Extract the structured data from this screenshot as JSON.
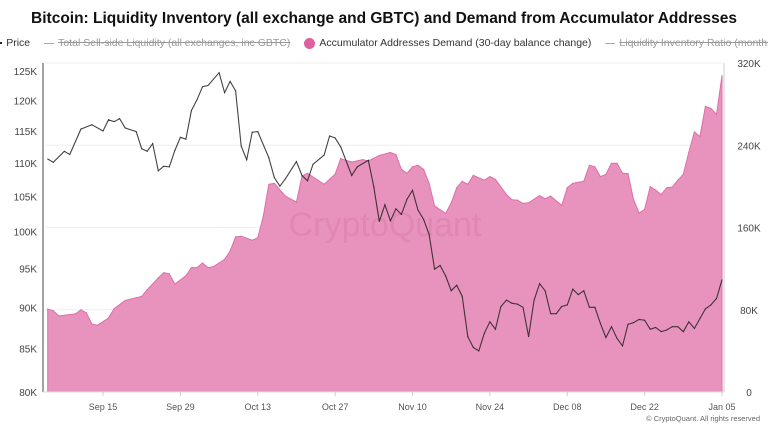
{
  "chart_data": {
    "type": "line+area",
    "title": "Bitcoin: Liquidity Inventory (all exchange and GBTC) and Demand from Accumulator Addresses",
    "legend": [
      {
        "label": "Price",
        "visible": true,
        "color": "#222222",
        "marker": "line"
      },
      {
        "label": "Total Sell-side Liquidity (all exchanges, inc GBTC)",
        "visible": false,
        "color": "#aaaaaa",
        "marker": "line"
      },
      {
        "label": "Accumulator Addresses Demand (30-day balance change)",
        "visible": true,
        "color": "#e0609f",
        "marker": "dot"
      },
      {
        "label": "Liquidity Inventory Ratio (months)",
        "visible": false,
        "color": "#aaaaaa",
        "marker": "line"
      }
    ],
    "legend_placement": "top",
    "x_ticks": [
      "Sep 15",
      "Sep 29",
      "Oct 13",
      "Oct 27",
      "Nov 10",
      "Nov 24",
      "Dec 08",
      "Dec 22",
      "Jan 05"
    ],
    "left_axis": {
      "scale": "log",
      "range": [
        80000,
        125000
      ],
      "ticks": [
        "80K",
        "85K",
        "90K",
        "95K",
        "100K",
        "105K",
        "110K",
        "115K",
        "120K",
        "125K"
      ],
      "tick_values": [
        80,
        85,
        90,
        95,
        100,
        105,
        110,
        115,
        120,
        125
      ]
    },
    "right_axis": {
      "scale": "linear",
      "range": [
        0,
        320000
      ],
      "ticks": [
        "0",
        "80K",
        "160K",
        "240K",
        "320K"
      ],
      "tick_values": [
        0,
        80,
        160,
        240,
        320
      ]
    },
    "grid": "horizontal",
    "watermark": "CryptoQuant",
    "series": [
      {
        "name": "Price",
        "type": "line",
        "axis": "left",
        "unit": "K USD",
        "color": "#222222",
        "points": [
          [
            "Sep 5",
            110.6
          ],
          [
            "Sep 6",
            110.1
          ],
          [
            "Sep 8",
            111.8
          ],
          [
            "Sep 9",
            111.3
          ],
          [
            "Sep 11",
            115.3
          ],
          [
            "Sep 13",
            116.0
          ],
          [
            "Sep 15",
            115.0
          ],
          [
            "Sep 16",
            116.8
          ],
          [
            "Sep 17",
            116.5
          ],
          [
            "Sep 18",
            117.0
          ],
          [
            "Sep 19",
            115.5
          ],
          [
            "Sep 21",
            114.9
          ],
          [
            "Sep 22",
            112.2
          ],
          [
            "Sep 23",
            111.8
          ],
          [
            "Sep 24",
            113.0
          ],
          [
            "Sep 25",
            108.8
          ],
          [
            "Sep 26",
            109.5
          ],
          [
            "Sep 27",
            109.4
          ],
          [
            "Sep 28",
            111.9
          ],
          [
            "Sep 29",
            114.0
          ],
          [
            "Sep 30",
            113.7
          ],
          [
            "Oct 1",
            118.3
          ],
          [
            "Oct 2",
            120.1
          ],
          [
            "Oct 3",
            122.3
          ],
          [
            "Oct 4",
            122.5
          ],
          [
            "Oct 6",
            124.7
          ],
          [
            "Oct 7",
            121.3
          ],
          [
            "Oct 8",
            123.2
          ],
          [
            "Oct 9",
            121.6
          ],
          [
            "Oct 10",
            112.6
          ],
          [
            "Oct 11",
            110.5
          ],
          [
            "Oct 12",
            114.8
          ],
          [
            "Oct 13",
            114.9
          ],
          [
            "Oct 15",
            110.8
          ],
          [
            "Oct 16",
            107.8
          ],
          [
            "Oct 17",
            106.5
          ],
          [
            "Oct 18",
            107.6
          ],
          [
            "Oct 20",
            110.2
          ],
          [
            "Oct 21",
            108.1
          ],
          [
            "Oct 22",
            107.3
          ],
          [
            "Oct 23",
            109.8
          ],
          [
            "Oct 25",
            111.2
          ],
          [
            "Oct 26",
            114.2
          ],
          [
            "Oct 27",
            113.9
          ],
          [
            "Oct 28",
            112.5
          ],
          [
            "Oct 30",
            108.1
          ],
          [
            "Oct 31",
            109.4
          ],
          [
            "Nov 2",
            110.4
          ],
          [
            "Nov 3",
            106.4
          ],
          [
            "Nov 4",
            101.4
          ],
          [
            "Nov 5",
            103.8
          ],
          [
            "Nov 6",
            101.5
          ],
          [
            "Nov 7",
            103.2
          ],
          [
            "Nov 8",
            102.4
          ],
          [
            "Nov 9",
            104.6
          ],
          [
            "Nov 10",
            105.9
          ],
          [
            "Nov 11",
            103.0
          ],
          [
            "Nov 12",
            101.7
          ],
          [
            "Nov 13",
            99.6
          ],
          [
            "Nov 14",
            94.9
          ],
          [
            "Nov 15",
            95.4
          ],
          [
            "Nov 16",
            94.0
          ],
          [
            "Nov 17",
            92.1
          ],
          [
            "Nov 18",
            92.8
          ],
          [
            "Nov 19",
            91.4
          ],
          [
            "Nov 20",
            86.4
          ],
          [
            "Nov 21",
            85.1
          ],
          [
            "Nov 22",
            84.7
          ],
          [
            "Nov 23",
            86.8
          ],
          [
            "Nov 24",
            88.2
          ],
          [
            "Nov 25",
            87.3
          ],
          [
            "Nov 26",
            90.1
          ],
          [
            "Nov 27",
            90.9
          ],
          [
            "Nov 28",
            90.5
          ],
          [
            "Nov 29",
            90.4
          ],
          [
            "Nov 30",
            90.0
          ],
          [
            "Dec 1",
            86.4
          ],
          [
            "Dec 2",
            90.9
          ],
          [
            "Dec 3",
            93.0
          ],
          [
            "Dec 4",
            92.1
          ],
          [
            "Dec 5",
            89.2
          ],
          [
            "Dec 6",
            89.2
          ],
          [
            "Dec 7",
            90.1
          ],
          [
            "Dec 8",
            90.3
          ],
          [
            "Dec 9",
            92.3
          ],
          [
            "Dec 10",
            91.6
          ],
          [
            "Dec 11",
            92.1
          ],
          [
            "Dec 12",
            90.0
          ],
          [
            "Dec 13",
            90.0
          ],
          [
            "Dec 14",
            88.0
          ],
          [
            "Dec 15",
            86.3
          ],
          [
            "Dec 16",
            87.6
          ],
          [
            "Dec 17",
            86.2
          ],
          [
            "Dec 18",
            85.3
          ],
          [
            "Dec 19",
            87.9
          ],
          [
            "Dec 20",
            88.1
          ],
          [
            "Dec 21",
            88.5
          ],
          [
            "Dec 22",
            88.4
          ],
          [
            "Dec 23",
            87.3
          ],
          [
            "Dec 24",
            87.5
          ],
          [
            "Dec 25",
            87.0
          ],
          [
            "Dec 26",
            87.2
          ],
          [
            "Dec 27",
            87.6
          ],
          [
            "Dec 28",
            87.6
          ],
          [
            "Dec 29",
            87.0
          ],
          [
            "Dec 30",
            88.2
          ],
          [
            "Dec 31",
            87.4
          ],
          [
            "Jan 1",
            88.6
          ],
          [
            "Jan 2",
            89.8
          ],
          [
            "Jan 3",
            90.3
          ],
          [
            "Jan 4",
            91.1
          ],
          [
            "Jan 5",
            93.5
          ]
        ]
      },
      {
        "name": "Accumulator Addresses Demand (30-day balance change)",
        "type": "area",
        "axis": "right",
        "unit": "K BTC",
        "color": "#e0609f",
        "points": [
          [
            "Sep 5",
            80.7
          ],
          [
            "Sep 6",
            79
          ],
          [
            "Sep 7",
            74
          ],
          [
            "Sep 10",
            76
          ],
          [
            "Sep 11",
            80
          ],
          [
            "Sep 12",
            77
          ],
          [
            "Sep 13",
            66
          ],
          [
            "Sep 14",
            65
          ],
          [
            "Sep 16",
            72
          ],
          [
            "Sep 17",
            81
          ],
          [
            "Sep 19",
            89
          ],
          [
            "Sep 22",
            93
          ],
          [
            "Sep 23",
            99.5
          ],
          [
            "Sep 25",
            111
          ],
          [
            "Sep 26",
            116
          ],
          [
            "Sep 27",
            115
          ],
          [
            "Sep 28",
            105
          ],
          [
            "Sep 30",
            113
          ],
          [
            "Oct 1",
            121
          ],
          [
            "Oct 2",
            121
          ],
          [
            "Oct 3",
            125.5
          ],
          [
            "Oct 4",
            121
          ],
          [
            "Oct 5",
            122
          ],
          [
            "Oct 7",
            129
          ],
          [
            "Oct 8",
            137
          ],
          [
            "Oct 9",
            151
          ],
          [
            "Oct 10",
            151.5
          ],
          [
            "Oct 12",
            147.6
          ],
          [
            "Oct 13",
            150
          ],
          [
            "Oct 14",
            171
          ],
          [
            "Oct 15",
            202
          ],
          [
            "Oct 16",
            203
          ],
          [
            "Oct 18",
            190.5
          ],
          [
            "Oct 20",
            184.7
          ],
          [
            "Oct 21",
            210
          ],
          [
            "Oct 22",
            212.7
          ],
          [
            "Oct 25",
            202
          ],
          [
            "Oct 27",
            211.7
          ],
          [
            "Oct 28",
            227
          ],
          [
            "Oct 30",
            223.7
          ],
          [
            "Nov 1",
            226
          ],
          [
            "Nov 2",
            224.7
          ],
          [
            "Nov 4",
            230
          ],
          [
            "Nov 6",
            233
          ],
          [
            "Nov 7",
            231
          ],
          [
            "Nov 8",
            216.6
          ],
          [
            "Nov 9",
            212.7
          ],
          [
            "Nov 10",
            219
          ],
          [
            "Nov 11",
            220.5
          ],
          [
            "Nov 12",
            216.6
          ],
          [
            "Nov 13",
            203
          ],
          [
            "Nov 14",
            181
          ],
          [
            "Nov 16",
            173.7
          ],
          [
            "Nov 17",
            184
          ],
          [
            "Nov 18",
            198.7
          ],
          [
            "Nov 19",
            205
          ],
          [
            "Nov 20",
            202
          ],
          [
            "Nov 21",
            210.7
          ],
          [
            "Nov 23",
            206
          ],
          [
            "Nov 24",
            209.5
          ],
          [
            "Nov 25",
            206.8
          ],
          [
            "Nov 27",
            192
          ],
          [
            "Nov 28",
            187
          ],
          [
            "Nov 29",
            186.6
          ],
          [
            "Nov 30",
            183.4
          ],
          [
            "Dec 1",
            184
          ],
          [
            "Dec 3",
            191
          ],
          [
            "Dec 4",
            188
          ],
          [
            "Dec 5",
            190.5
          ],
          [
            "Dec 7",
            181.5
          ],
          [
            "Dec 8",
            198.7
          ],
          [
            "Dec 9",
            203
          ],
          [
            "Dec 11",
            205
          ],
          [
            "Dec 12",
            220.5
          ],
          [
            "Dec 13",
            219
          ],
          [
            "Dec 14",
            209.5
          ],
          [
            "Dec 15",
            211.7
          ],
          [
            "Dec 16",
            222.4
          ],
          [
            "Dec 17",
            222.4
          ],
          [
            "Dec 18",
            212.7
          ],
          [
            "Dec 19",
            212.4
          ],
          [
            "Dec 20",
            187
          ],
          [
            "Dec 21",
            174
          ],
          [
            "Dec 22",
            177.6
          ],
          [
            "Dec 23",
            199.7
          ],
          [
            "Dec 24",
            196.4
          ],
          [
            "Dec 25",
            192
          ],
          [
            "Dec 26",
            198.7
          ],
          [
            "Dec 27",
            199.3
          ],
          [
            "Dec 28",
            206
          ],
          [
            "Dec 29",
            211.7
          ],
          [
            "Dec 30",
            233
          ],
          [
            "Dec 31",
            253
          ],
          [
            "Jan 1",
            248.5
          ],
          [
            "Jan 2",
            277.8
          ],
          [
            "Jan 3",
            275.8
          ],
          [
            "Jan 4",
            270
          ],
          [
            "Jan 5",
            307.6
          ]
        ]
      }
    ]
  },
  "footer": "© CryptoQuant. All rights reserved"
}
